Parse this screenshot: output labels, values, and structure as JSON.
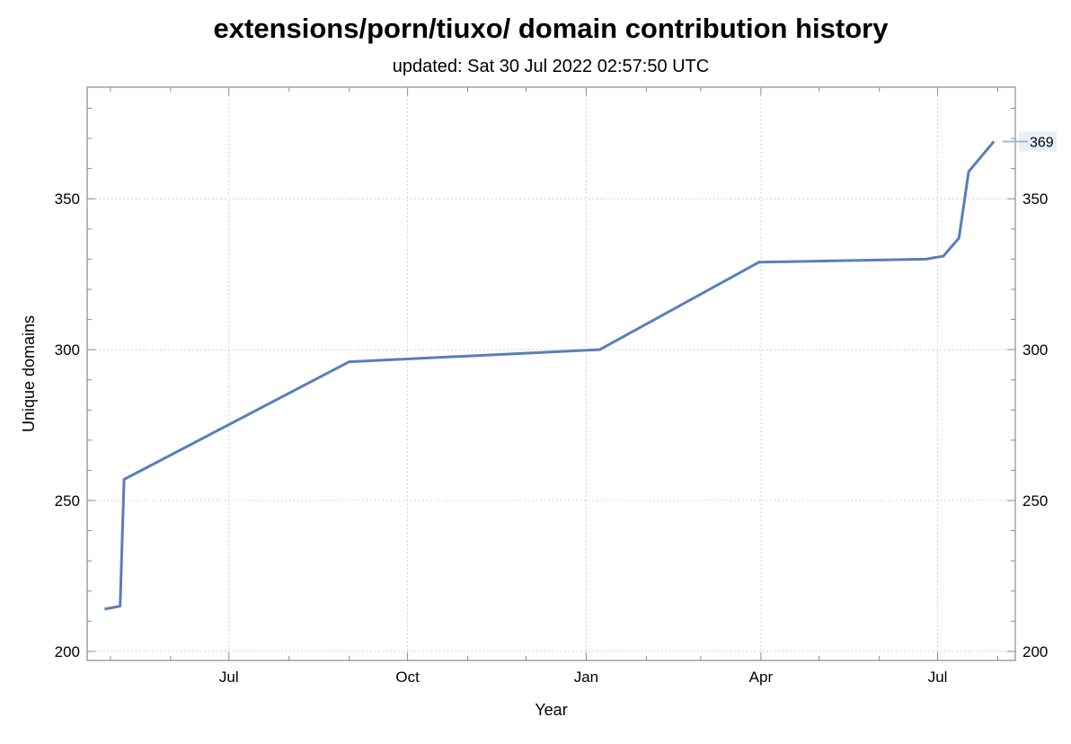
{
  "chart_data": {
    "type": "line",
    "title": "extensions/porn/tiuxo/ domain contribution history",
    "subtitle": "updated: Sat 30 Jul 2022 02:57:50 UTC",
    "xlabel": "Year",
    "ylabel": "Unique domains",
    "x_ticks": [
      {
        "date": "2021-07-01",
        "label": "Jul"
      },
      {
        "date": "2021-10-01",
        "label": "Oct"
      },
      {
        "date": "2022-01-01",
        "label": "Jan"
      },
      {
        "date": "2022-04-01",
        "label": "Apr"
      },
      {
        "date": "2022-07-01",
        "label": "Jul"
      }
    ],
    "y_ticks": [
      200,
      250,
      300,
      350
    ],
    "ylim": [
      197,
      387
    ],
    "xlim": [
      "2021-04-19",
      "2022-08-10"
    ],
    "grid": true,
    "series": [
      {
        "color": "#5a7fb8",
        "points": [
          {
            "x": "2021-04-28",
            "y": 214
          },
          {
            "x": "2021-05-06",
            "y": 215
          },
          {
            "x": "2021-05-08",
            "y": 257
          },
          {
            "x": "2021-09-01",
            "y": 296
          },
          {
            "x": "2022-01-08",
            "y": 300
          },
          {
            "x": "2022-03-31",
            "y": 329
          },
          {
            "x": "2022-06-25",
            "y": 330
          },
          {
            "x": "2022-07-04",
            "y": 331
          },
          {
            "x": "2022-07-12",
            "y": 337
          },
          {
            "x": "2022-07-17",
            "y": 359
          },
          {
            "x": "2022-07-30",
            "y": 369
          }
        ]
      }
    ],
    "end_label": "369"
  }
}
